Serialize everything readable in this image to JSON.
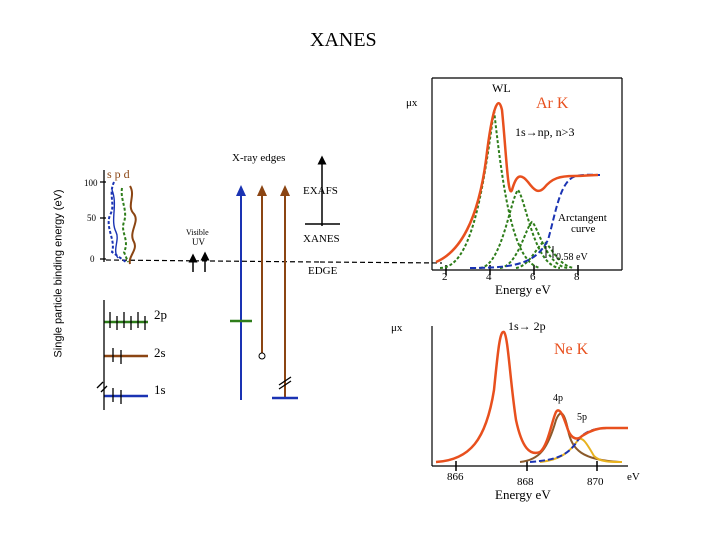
{
  "slide": {
    "title": "XANES"
  },
  "energy_diagram": {
    "ylabel": "Single particle binding energy (eV)",
    "yticks": [
      "100",
      "50",
      "0"
    ],
    "orbital_header": "s p d",
    "levels": [
      "2p",
      "2s",
      "1s"
    ],
    "xray_edges_label": "X-ray edges",
    "exafs_label": "EXAFS",
    "xanes_label": "XANES",
    "edge_label": "EDGE",
    "visible_label": "Visible",
    "uv_label": "UV",
    "colors": {
      "s": "#1a33b3",
      "p": "#2e7d1a",
      "d": "#8b4513",
      "level_blue": "#1a33b3"
    }
  },
  "ar_panel": {
    "ylabel": "μx",
    "title": "Ar  K",
    "transition": "1s→np, n>3",
    "wl_label": "WL",
    "arctangent_label_1": "Arctangent",
    "arctangent_label_2": "curve",
    "energy_marker": "0.58 eV",
    "xlabel": "Energy  eV",
    "xticks": [
      "2",
      "4",
      "6",
      "8"
    ]
  },
  "ne_panel": {
    "ylabel": "μx",
    "title": "Ne  K",
    "transition": "1s→ 2p",
    "peak_labels": [
      "4p",
      "5p"
    ],
    "xlabel": "Energy  eV",
    "xticks": [
      "866",
      "868",
      "870"
    ],
    "x_unit": "eV"
  },
  "colors": {
    "spectrum": "#e8501e",
    "component_green": "#2e7d1a",
    "arctan_blue": "#1a33b3",
    "component_brown": "#8b5a2b",
    "component_yellow": "#e8b21e"
  }
}
